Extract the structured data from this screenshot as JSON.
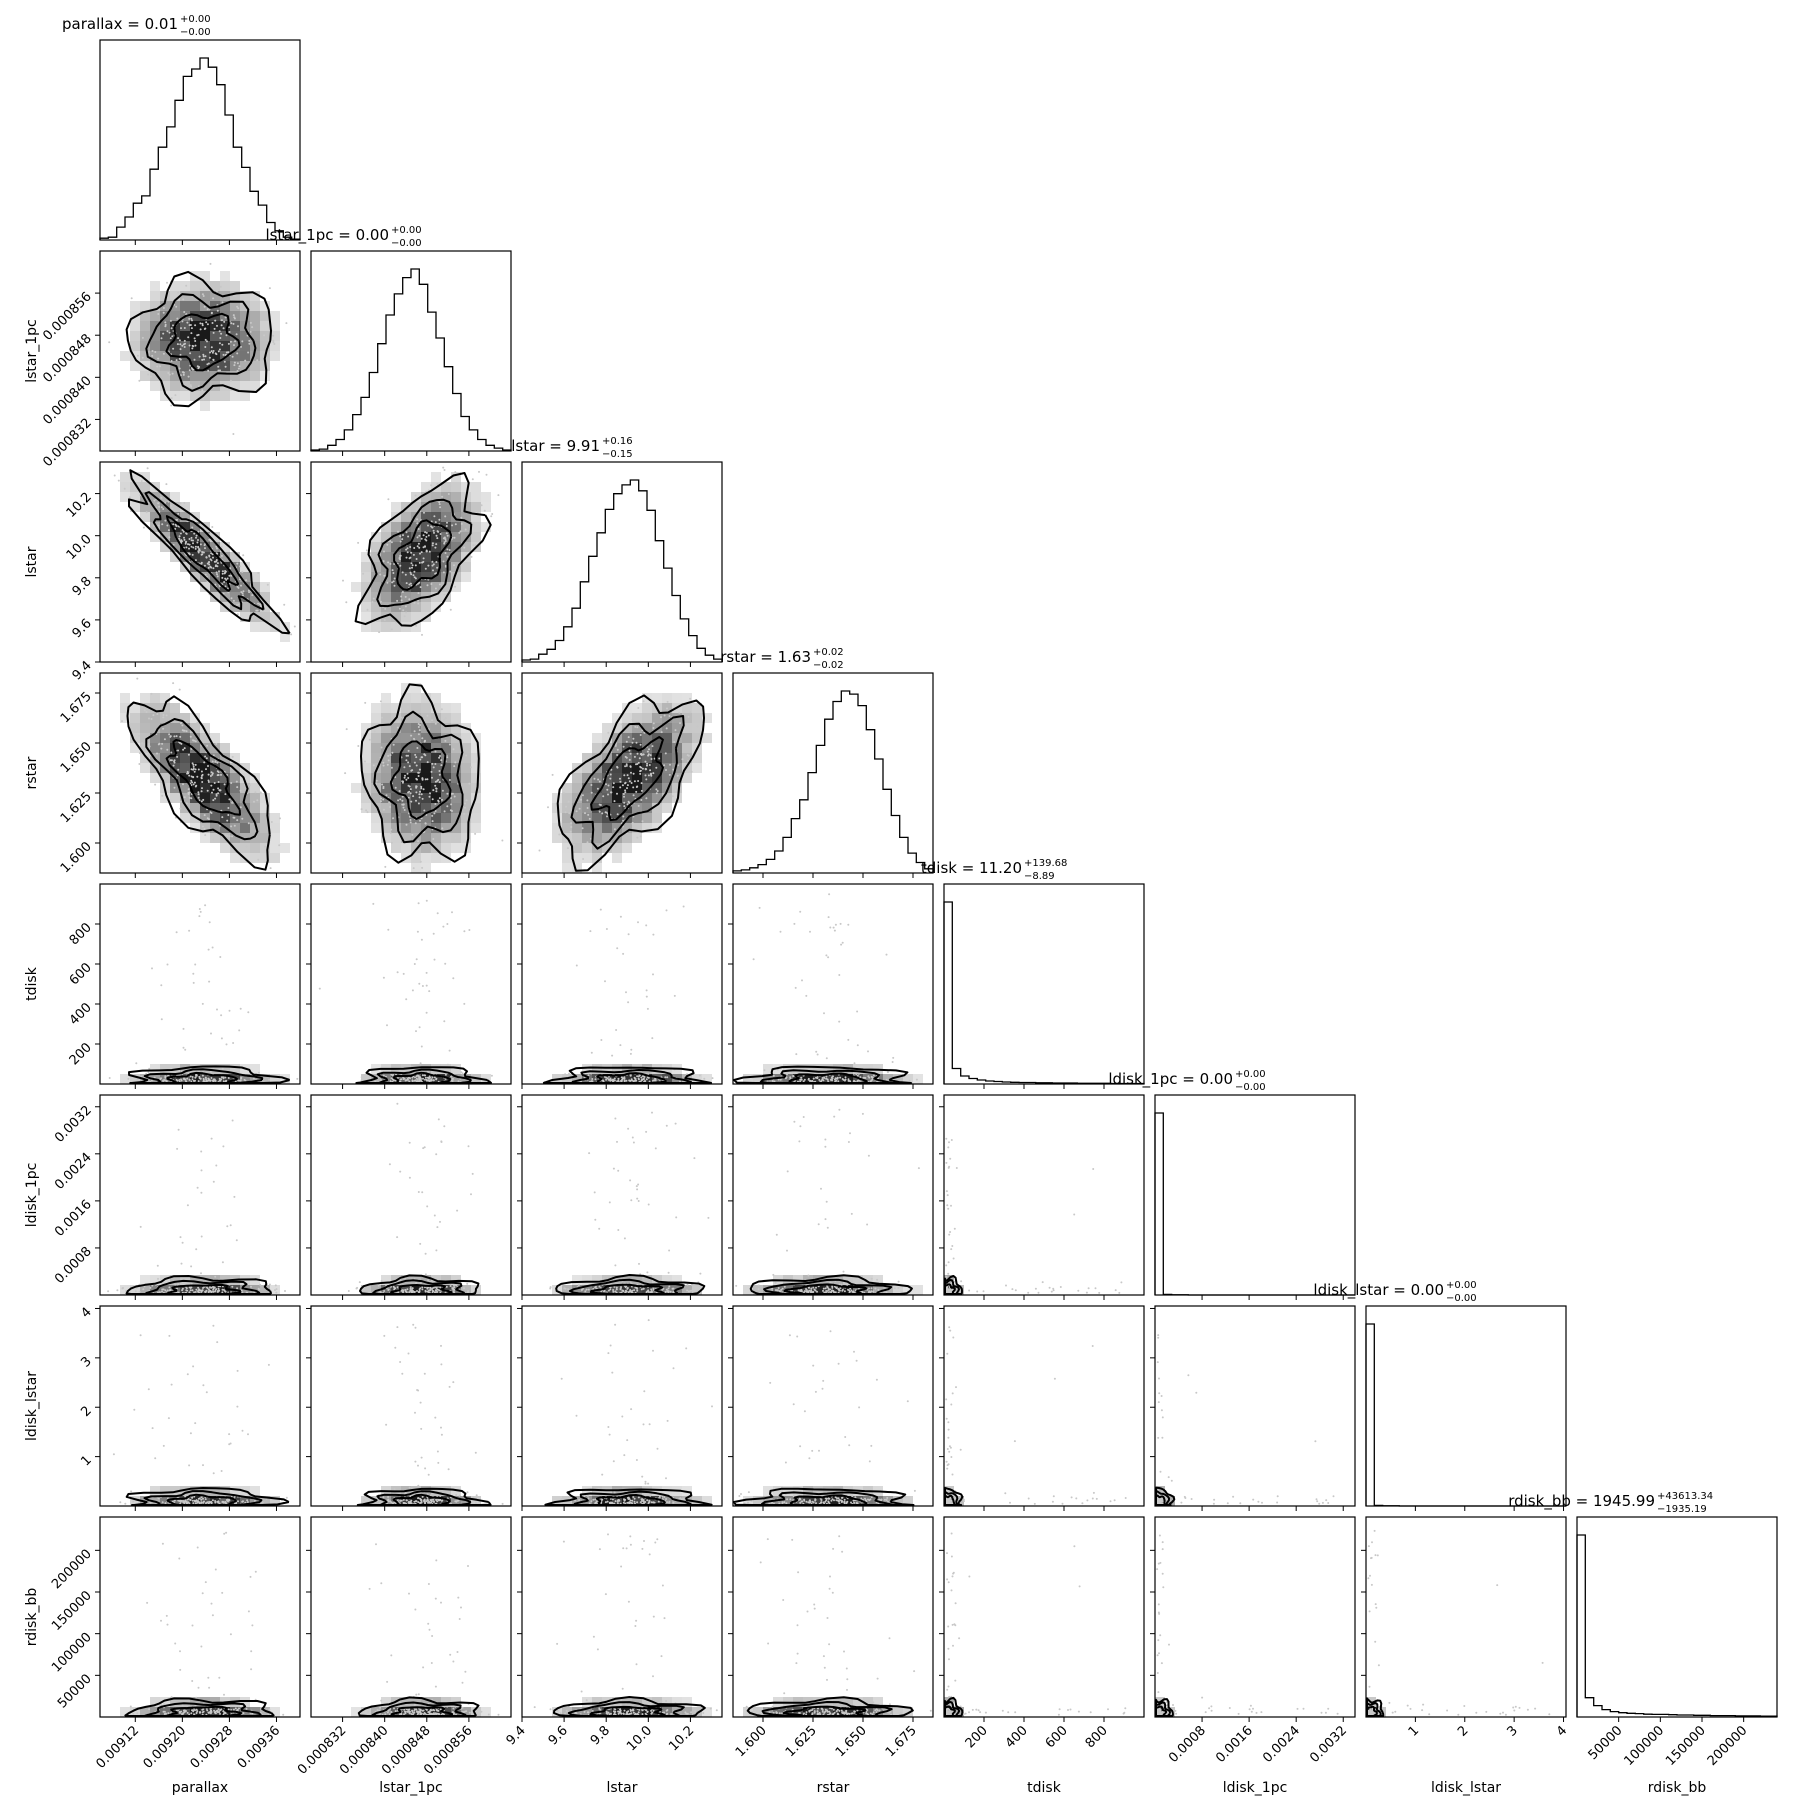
{
  "chart_data": {
    "type": "corner",
    "parameters": [
      {
        "name": "parallax",
        "title_value": "0.01",
        "err_plus": "+0.00",
        "err_minus": "−0.00",
        "range": [
          0.00906,
          0.0094
        ],
        "ticks": [
          0.00912,
          0.0092,
          0.00928,
          0.00936
        ],
        "tick_labels": [
          "0.00912",
          "0.00920",
          "0.00928",
          "0.00936"
        ],
        "center": 0.009235,
        "sigma": 5.5e-05,
        "skewed": false,
        "hist": [
          2,
          3,
          14,
          25,
          40,
          48,
          77,
          101,
          123,
          152,
          178,
          186,
          198,
          188,
          169,
          136,
          101,
          79,
          53,
          38,
          19,
          10,
          3,
          1
        ]
      },
      {
        "name": "lstar_1pc",
        "title_value": "0.00",
        "err_plus": "+0.00",
        "err_minus": "−0.00",
        "range": [
          0.000826,
          0.000864
        ],
        "ticks": [
          0.000832,
          0.00084,
          0.000848,
          0.000856
        ],
        "tick_labels": [
          "0.000832",
          "0.000840",
          "0.000848",
          "0.000856"
        ],
        "center": 0.000847,
        "sigma": 5e-06,
        "skewed": false,
        "hist": [
          1,
          2,
          6,
          12,
          22,
          38,
          56,
          82,
          112,
          142,
          164,
          181,
          190,
          174,
          145,
          118,
          88,
          60,
          36,
          22,
          12,
          6,
          3,
          1
        ]
      },
      {
        "name": "lstar",
        "title_value": "9.91",
        "err_plus": "+0.16",
        "err_minus": "−0.15",
        "range": [
          9.4,
          10.35
        ],
        "ticks": [
          9.4,
          9.6,
          9.8,
          10.0,
          10.2
        ],
        "tick_labels": [
          "9.4",
          "9.6",
          "9.8",
          "10.0",
          "10.2"
        ],
        "center": 9.91,
        "sigma": 0.155,
        "skewed": false,
        "hist": [
          2,
          3,
          8,
          13,
          22,
          36,
          55,
          82,
          108,
          132,
          156,
          172,
          181,
          186,
          175,
          155,
          124,
          96,
          68,
          44,
          27,
          14,
          7,
          3
        ]
      },
      {
        "name": "rstar",
        "title_value": "1.63",
        "err_plus": "+0.02",
        "err_minus": "−0.02",
        "range": [
          1.585,
          1.685
        ],
        "ticks": [
          1.6,
          1.625,
          1.65,
          1.675
        ],
        "tick_labels": [
          "1.600",
          "1.625",
          "1.650",
          "1.675"
        ],
        "center": 1.632,
        "sigma": 0.018,
        "skewed": false,
        "hist": [
          2,
          3,
          5,
          8,
          13,
          21,
          34,
          52,
          70,
          96,
          122,
          147,
          164,
          174,
          171,
          160,
          137,
          109,
          80,
          55,
          34,
          19,
          10,
          4
        ]
      },
      {
        "name": "tdisk",
        "title_value": "11.20",
        "err_plus": "+139.68",
        "err_minus": "−8.89",
        "range": [
          0,
          1000
        ],
        "ticks": [
          200,
          400,
          600,
          800
        ],
        "tick_labels": [
          "200",
          "400",
          "600",
          "800"
        ],
        "center": 0,
        "sigma": 0,
        "skewed": true,
        "hist": [
          730,
          62,
          32,
          22,
          16,
          12,
          10,
          8,
          7,
          6,
          6,
          5,
          5,
          4,
          4,
          4,
          3,
          3,
          3,
          3,
          2,
          2,
          2,
          2
        ]
      },
      {
        "name": "ldisk_1pc",
        "title_value": "0.00",
        "err_plus": "+0.00",
        "err_minus": "−0.00",
        "range": [
          0,
          0.0034
        ],
        "ticks": [
          0.0008,
          0.0016,
          0.0024,
          0.0032
        ],
        "tick_labels": [
          "0.0008",
          "0.0016",
          "0.0024",
          "0.0032"
        ],
        "center": 0,
        "sigma": 0,
        "skewed": true,
        "hist": [
          920,
          3,
          1,
          1,
          0,
          0,
          0,
          0,
          0,
          0,
          0,
          0,
          0,
          0,
          0,
          0,
          0,
          0,
          0,
          0,
          0,
          0,
          0,
          0
        ]
      },
      {
        "name": "ldisk_lstar",
        "title_value": "0.00",
        "err_plus": "+0.00",
        "err_minus": "−0.00",
        "range": [
          0,
          4.05
        ],
        "ticks": [
          1,
          2,
          3,
          4
        ],
        "tick_labels": [
          "1",
          "2",
          "3",
          "4"
        ],
        "center": 0,
        "sigma": 0,
        "skewed": true,
        "hist": [
          920,
          3,
          1,
          1,
          0,
          0,
          0,
          0,
          0,
          0,
          0,
          0,
          0,
          0,
          0,
          0,
          0,
          0,
          0,
          0,
          0,
          0,
          0,
          0
        ]
      },
      {
        "name": "rdisk_bb",
        "title_value": "1945.99",
        "err_plus": "+43613.34",
        "err_minus": "−1935.19",
        "range": [
          0,
          240000
        ],
        "ticks": [
          50000,
          100000,
          150000,
          200000
        ],
        "tick_labels": [
          "50000",
          "100000",
          "150000",
          "200000"
        ],
        "center": 0,
        "sigma": 0,
        "skewed": true,
        "hist": [
          640,
          68,
          40,
          26,
          19,
          15,
          13,
          12,
          10,
          9,
          9,
          8,
          7,
          7,
          6,
          6,
          5,
          5,
          5,
          4,
          4,
          4,
          3,
          3
        ]
      }
    ],
    "y_tick_labels": {
      "lstar_1pc": {
        "ticks": [
          0.000832,
          0.00084,
          0.000848,
          0.000856
        ],
        "labels": [
          "0.000832",
          "0.000840",
          "0.000848",
          "0.000856"
        ]
      },
      "lstar": {
        "ticks": [
          9.4,
          9.6,
          9.8,
          10.0,
          10.2
        ],
        "labels": [
          "9.4",
          "9.6",
          "9.8",
          "10.0",
          "10.2"
        ]
      },
      "rstar": {
        "ticks": [
          1.6,
          1.625,
          1.65,
          1.675
        ],
        "labels": [
          "1.600",
          "1.625",
          "1.650",
          "1.675"
        ]
      },
      "tdisk": {
        "ticks": [
          200,
          400,
          600,
          800
        ],
        "labels": [
          "200",
          "400",
          "600",
          "800"
        ]
      },
      "ldisk_1pc": {
        "ticks": [
          0.0008,
          0.0016,
          0.0024,
          0.0032
        ],
        "labels": [
          "0.0008",
          "0.0016",
          "0.0024",
          "0.0032"
        ]
      },
      "ldisk_lstar": {
        "ticks": [
          1,
          2,
          3,
          4
        ],
        "labels": [
          "1",
          "2",
          "3",
          "4"
        ]
      },
      "rdisk_bb": {
        "ticks": [
          50000,
          100000,
          150000,
          200000
        ],
        "labels": [
          "50000",
          "100000",
          "150000",
          "200000"
        ]
      }
    },
    "correlations": {
      "parallax|lstar": -0.9,
      "parallax|rstar": -0.75,
      "lstar_1pc|lstar": 0.5,
      "lstar_1pc|rstar": -0.1,
      "lstar|rstar": 0.6
    },
    "grid": false,
    "legend": "none"
  }
}
